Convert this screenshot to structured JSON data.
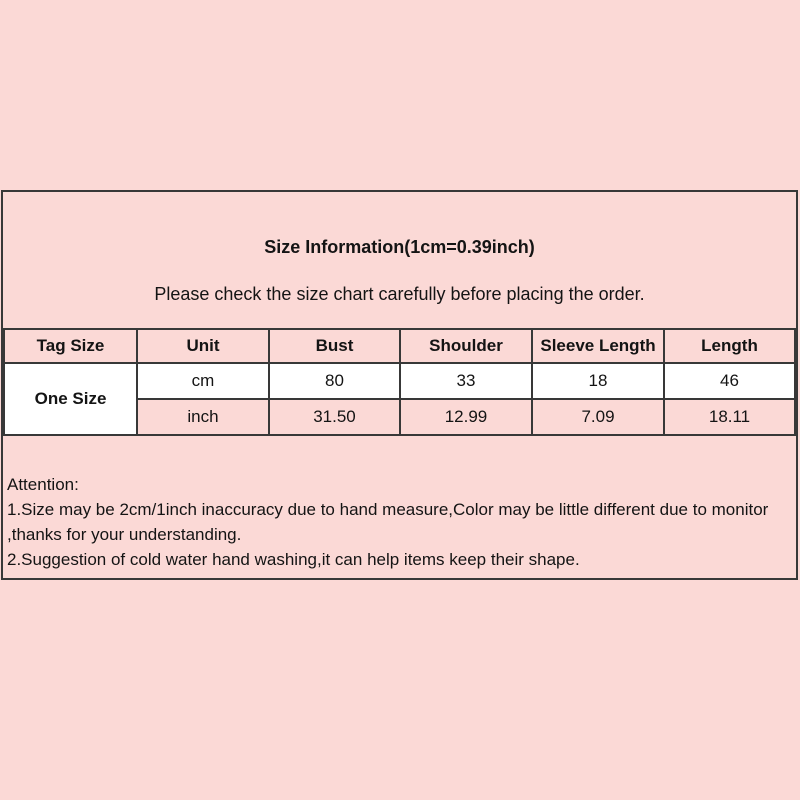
{
  "page": {
    "background_color": "#fbd9d6",
    "border_color": "#383838",
    "row_white_color": "#ffffff"
  },
  "info_box": {
    "title": "Size Information(1cm=0.39inch)",
    "subtitle": "Please check the size chart carefully before placing the order."
  },
  "size_table": {
    "headers": [
      "Tag Size",
      "Unit",
      "Bust",
      "Shoulder",
      "Sleeve Length",
      "Length"
    ],
    "tag_size": "One Size",
    "rows": [
      {
        "unit": "cm",
        "values": [
          "80",
          "33",
          "18",
          "46"
        ]
      },
      {
        "unit": "inch",
        "values": [
          "31.50",
          "12.99",
          "7.09",
          "18.11"
        ]
      }
    ]
  },
  "attention": {
    "heading": "Attention:",
    "notes": [
      "1.Size may be 2cm/1inch inaccuracy due to hand measure,Color may be little different due to monitor ,thanks for your understanding.",
      "2.Suggestion of cold water hand washing,it can help items keep their shape."
    ]
  }
}
